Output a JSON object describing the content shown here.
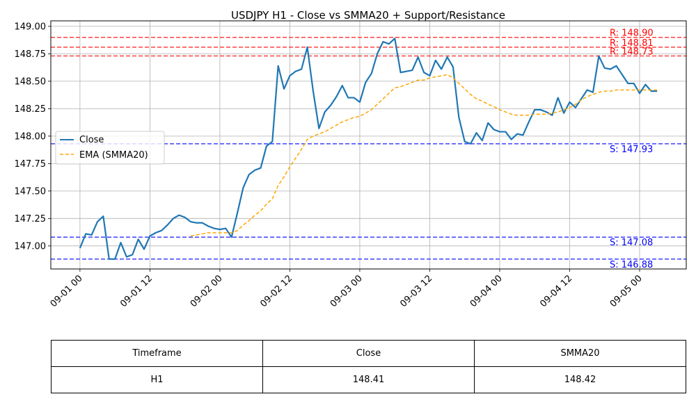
{
  "chart_data": {
    "type": "line",
    "title": "USDJPY H1 - Close vs SMMA20 + Support/Resistance",
    "xlabel": "",
    "ylabel": "",
    "ylim": [
      146.79,
      149.05
    ],
    "xlim_hours": [
      -10,
      208
    ],
    "y_ticks": [
      147.0,
      147.25,
      147.5,
      147.75,
      148.0,
      148.25,
      148.5,
      148.75,
      149.0
    ],
    "y_tick_labels": [
      "147.00",
      "147.25",
      "147.50",
      "147.75",
      "148.00",
      "148.25",
      "148.50",
      "148.75",
      "149.00"
    ],
    "x_ticks_hours": [
      0,
      24,
      48,
      72,
      96,
      120,
      144,
      168,
      192
    ],
    "x_tick_labels": [
      "09-01 00",
      "09-01 12",
      "09-02 00",
      "09-02 12",
      "09-03 00",
      "09-03 12",
      "09-04 00",
      "09-04 12",
      "09-05 00"
    ],
    "x_start": "09-01 00",
    "x_step_hours": 2,
    "grid": true,
    "legend_position": "center-left",
    "series": [
      {
        "name": "Close",
        "color": "#1f77b4",
        "style": "solid",
        "start_index": 0,
        "values": [
          146.98,
          147.11,
          147.1,
          147.22,
          147.27,
          146.88,
          146.88,
          147.03,
          146.9,
          146.92,
          147.06,
          146.97,
          147.09,
          147.12,
          147.14,
          147.19,
          147.25,
          147.28,
          147.26,
          147.22,
          147.21,
          147.21,
          147.18,
          147.16,
          147.15,
          147.16,
          147.08,
          147.3,
          147.53,
          147.65,
          147.69,
          147.71,
          147.91,
          147.95,
          148.64,
          148.43,
          148.55,
          148.59,
          148.61,
          148.81,
          148.41,
          148.07,
          148.22,
          148.28,
          148.36,
          148.46,
          148.35,
          148.35,
          148.31,
          148.49,
          148.57,
          148.75,
          148.86,
          148.84,
          148.89,
          148.58,
          148.59,
          148.6,
          148.72,
          148.58,
          148.55,
          148.69,
          148.61,
          148.72,
          148.63,
          148.17,
          147.95,
          147.93,
          148.03,
          147.96,
          148.12,
          148.06,
          148.04,
          148.04,
          147.97,
          148.02,
          148.01,
          148.13,
          148.24,
          148.24,
          148.22,
          148.19,
          148.35,
          148.21,
          148.31,
          148.26,
          148.34,
          148.42,
          148.4,
          148.73,
          148.62,
          148.61,
          148.64,
          148.56,
          148.48,
          148.48,
          148.39,
          148.47,
          148.41,
          148.41
        ]
      },
      {
        "name": "EMA (SMMA20)",
        "color": "#ffa500",
        "style": "dashed",
        "start_index": 19,
        "values": [
          147.09,
          147.1,
          147.11,
          147.12,
          147.12,
          147.12,
          147.12,
          147.12,
          147.14,
          147.19,
          147.23,
          147.28,
          147.32,
          147.38,
          147.43,
          147.55,
          147.63,
          147.72,
          147.8,
          147.88,
          147.97,
          148.0,
          148.02,
          148.04,
          148.07,
          148.1,
          148.13,
          148.15,
          148.17,
          148.18,
          148.21,
          148.24,
          148.29,
          148.34,
          148.39,
          148.44,
          148.45,
          148.47,
          148.49,
          148.51,
          148.51,
          148.53,
          148.54,
          148.55,
          148.56,
          148.53,
          148.48,
          148.43,
          148.38,
          148.34,
          148.32,
          148.29,
          148.27,
          148.24,
          148.22,
          148.2,
          148.19,
          148.19,
          148.19,
          148.2,
          148.2,
          148.2,
          148.21,
          148.22,
          148.24,
          148.26,
          148.29,
          148.33,
          148.36,
          148.38,
          148.4,
          148.41,
          148.41,
          148.42,
          148.42,
          148.42,
          148.42,
          148.42,
          148.42,
          148.42,
          148.42
        ]
      }
    ],
    "levels": [
      {
        "kind": "resistance",
        "value": 148.9,
        "label": "R: 148.90",
        "color": "#ff0000"
      },
      {
        "kind": "resistance",
        "value": 148.81,
        "label": "R: 148.81",
        "color": "#ff0000"
      },
      {
        "kind": "resistance",
        "value": 148.73,
        "label": "R: 148.73",
        "color": "#ff0000"
      },
      {
        "kind": "support",
        "value": 147.93,
        "label": "S: 147.93",
        "color": "#0000ff"
      },
      {
        "kind": "support",
        "value": 147.08,
        "label": "S: 147.08",
        "color": "#0000ff"
      },
      {
        "kind": "support",
        "value": 146.88,
        "label": "S: 146.88",
        "color": "#0000ff"
      }
    ]
  },
  "table": {
    "headers": [
      "Timeframe",
      "Close",
      "SMMA20"
    ],
    "rows": [
      [
        "H1",
        "148.41",
        "148.42"
      ]
    ]
  }
}
